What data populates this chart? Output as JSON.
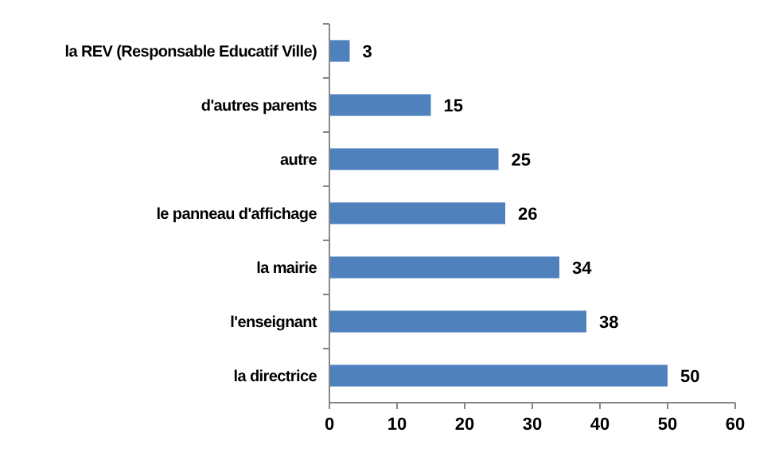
{
  "chart_data": {
    "type": "bar",
    "orientation": "horizontal",
    "categories": [
      "la REV (Responsable Educatif Ville)",
      "d'autres parents",
      "autre",
      "le panneau d'affichage",
      "la mairie",
      "l'enseignant",
      "la directrice"
    ],
    "values": [
      3,
      15,
      25,
      26,
      34,
      38,
      50
    ],
    "color": "#4f81bd",
    "xlim": [
      0,
      60
    ],
    "xticks": [
      0,
      10,
      20,
      30,
      40,
      50,
      60
    ],
    "data_labels": true
  }
}
